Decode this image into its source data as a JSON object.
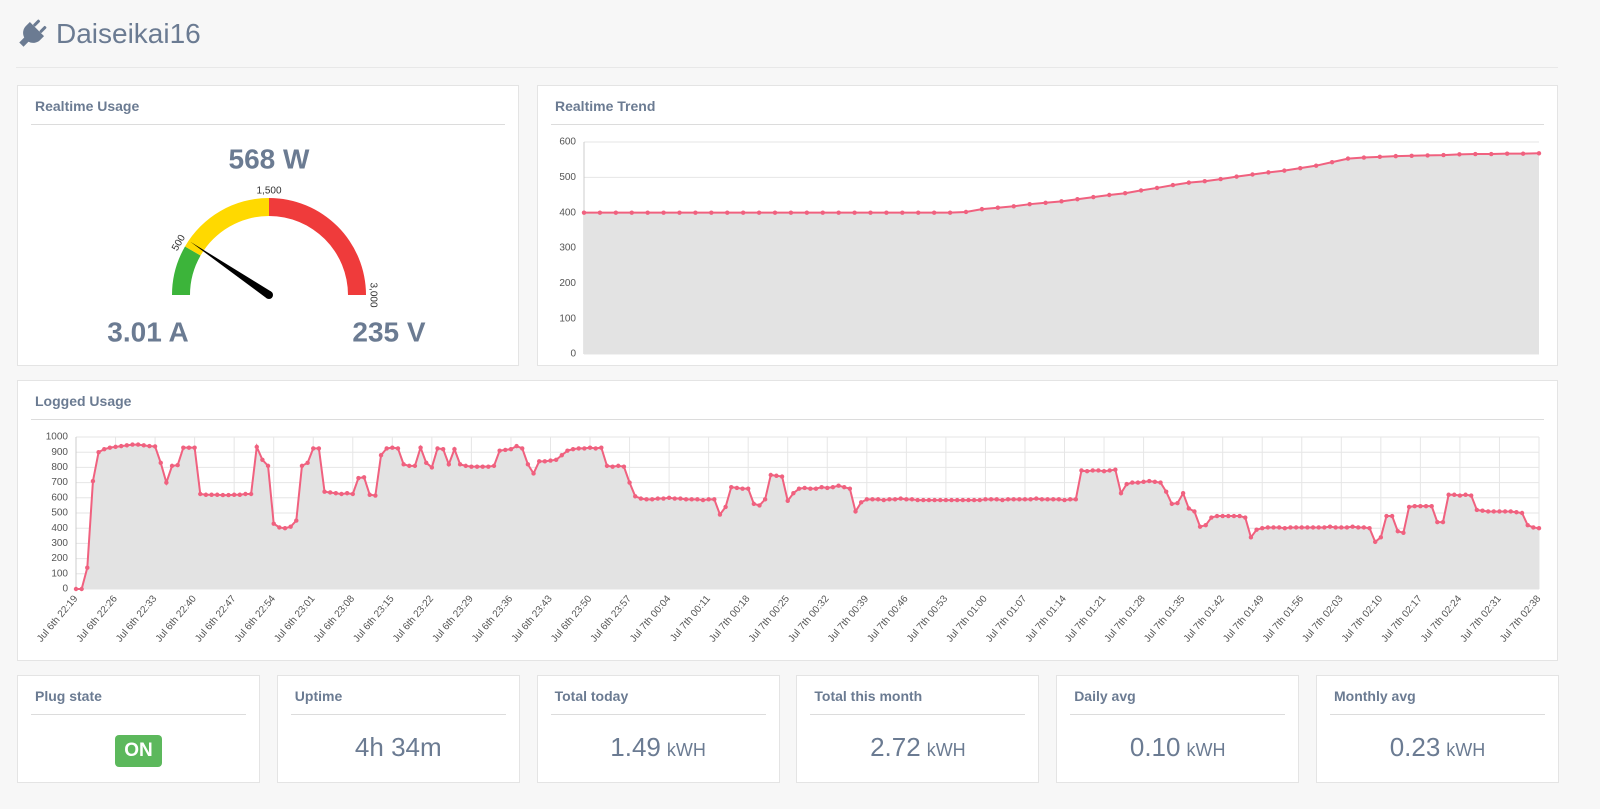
{
  "header": {
    "title": "Daiseikai16"
  },
  "chart_data": [
    {
      "type": "gauge",
      "title": "Realtime Usage",
      "value": 568,
      "value_label": "568 W",
      "current": "3.01 A",
      "voltage": "235 V",
      "range": [
        0,
        3000
      ],
      "ticks": [
        500,
        {
          "value": 1500,
          "label": "1,500"
        },
        {
          "value": 3000,
          "label": "3,000"
        }
      ],
      "bands": [
        {
          "from": 0,
          "to": 500,
          "color": "#3cb43a"
        },
        {
          "from": 500,
          "to": 1500,
          "color": "#ffd900"
        },
        {
          "from": 1500,
          "to": 3000,
          "color": "#ef3b3b"
        }
      ],
      "needle_color": "#000000"
    },
    {
      "type": "line",
      "title": "Realtime Trend",
      "color": "#f0617f",
      "area_color": "#e3e3e3",
      "grid": true,
      "xgrid": false,
      "ylim": [
        0,
        600
      ],
      "yticks": [
        0,
        100,
        200,
        300,
        400,
        500,
        600
      ],
      "values": [
        400,
        400,
        400,
        400,
        400,
        400,
        400,
        400,
        400,
        400,
        400,
        400,
        400,
        400,
        400,
        400,
        400,
        400,
        400,
        400,
        400,
        400,
        400,
        400,
        402,
        410,
        414,
        418,
        424,
        428,
        432,
        438,
        444,
        450,
        455,
        463,
        470,
        478,
        485,
        489,
        495,
        502,
        508,
        514,
        519,
        526,
        533,
        543,
        553,
        556,
        558,
        560,
        561,
        562,
        563,
        565,
        566,
        566,
        567,
        567,
        568
      ]
    },
    {
      "type": "line",
      "title": "Logged Usage",
      "color": "#f0617f",
      "area_color": "#e3e3e3",
      "grid": true,
      "xgrid": true,
      "ylim": [
        0,
        1000
      ],
      "yticks": [
        0,
        100,
        200,
        300,
        400,
        500,
        600,
        700,
        800,
        900,
        1000
      ],
      "categories": [
        "Jul 6th 22:19",
        null,
        null,
        null,
        null,
        null,
        null,
        "Jul 6th 22:26",
        null,
        null,
        null,
        null,
        null,
        null,
        "Jul 6th 22:33",
        null,
        null,
        null,
        null,
        null,
        null,
        "Jul 6th 22:40",
        null,
        null,
        null,
        null,
        null,
        null,
        "Jul 6th 22:47",
        null,
        null,
        null,
        null,
        null,
        null,
        "Jul 6th 22:54",
        null,
        null,
        null,
        null,
        null,
        null,
        "Jul 6th 23:01",
        null,
        null,
        null,
        null,
        null,
        null,
        "Jul 6th 23:08",
        null,
        null,
        null,
        null,
        null,
        null,
        "Jul 6th 23:15",
        null,
        null,
        null,
        null,
        null,
        null,
        "Jul 6th 23:22",
        null,
        null,
        null,
        null,
        null,
        null,
        "Jul 6th 23:29",
        null,
        null,
        null,
        null,
        null,
        null,
        "Jul 6th 23:36",
        null,
        null,
        null,
        null,
        null,
        null,
        "Jul 6th 23:43",
        null,
        null,
        null,
        null,
        null,
        null,
        "Jul 6th 23:50",
        null,
        null,
        null,
        null,
        null,
        null,
        "Jul 6th 23:57",
        null,
        null,
        null,
        null,
        null,
        null,
        "Jul 7th 00:04",
        null,
        null,
        null,
        null,
        null,
        null,
        "Jul 7th 00:11",
        null,
        null,
        null,
        null,
        null,
        null,
        "Jul 7th 00:18",
        null,
        null,
        null,
        null,
        null,
        null,
        "Jul 7th 00:25",
        null,
        null,
        null,
        null,
        null,
        null,
        "Jul 7th 00:32",
        null,
        null,
        null,
        null,
        null,
        null,
        "Jul 7th 00:39",
        null,
        null,
        null,
        null,
        null,
        null,
        "Jul 7th 00:46",
        null,
        null,
        null,
        null,
        null,
        null,
        "Jul 7th 00:53",
        null,
        null,
        null,
        null,
        null,
        null,
        "Jul 7th 01:00",
        null,
        null,
        null,
        null,
        null,
        null,
        "Jul 7th 01:07",
        null,
        null,
        null,
        null,
        null,
        null,
        "Jul 7th 01:14",
        null,
        null,
        null,
        null,
        null,
        null,
        "Jul 7th 01:21",
        null,
        null,
        null,
        null,
        null,
        null,
        "Jul 7th 01:28",
        null,
        null,
        null,
        null,
        null,
        null,
        "Jul 7th 01:35",
        null,
        null,
        null,
        null,
        null,
        null,
        "Jul 7th 01:42",
        null,
        null,
        null,
        null,
        null,
        null,
        "Jul 7th 01:49",
        null,
        null,
        null,
        null,
        null,
        null,
        "Jul 7th 01:56",
        null,
        null,
        null,
        null,
        null,
        null,
        "Jul 7th 02:03",
        null,
        null,
        null,
        null,
        null,
        null,
        "Jul 7th 02:10",
        null,
        null,
        null,
        null,
        null,
        null,
        "Jul 7th 02:17",
        null,
        null,
        null,
        null,
        null,
        null,
        "Jul 7th 02:24",
        null,
        null,
        null,
        null,
        null,
        null,
        "Jul 7th 02:31",
        null,
        null,
        null,
        null,
        null,
        null,
        "Jul 7th 02:38"
      ],
      "values": [
        0,
        0,
        140,
        710,
        900,
        920,
        930,
        935,
        940,
        945,
        950,
        950,
        945,
        940,
        938,
        830,
        700,
        810,
        815,
        930,
        930,
        930,
        625,
        620,
        620,
        620,
        618,
        618,
        620,
        620,
        625,
        625,
        935,
        850,
        810,
        430,
        405,
        400,
        410,
        450,
        810,
        830,
        925,
        925,
        640,
        635,
        630,
        625,
        630,
        625,
        730,
        735,
        620,
        615,
        880,
        925,
        930,
        925,
        820,
        810,
        810,
        930,
        830,
        800,
        925,
        920,
        820,
        920,
        820,
        810,
        805,
        805,
        805,
        805,
        810,
        910,
        915,
        920,
        940,
        925,
        820,
        760,
        840,
        840,
        845,
        850,
        880,
        910,
        920,
        925,
        925,
        930,
        925,
        930,
        810,
        805,
        810,
        805,
        700,
        610,
        595,
        590,
        590,
        595,
        595,
        600,
        595,
        595,
        590,
        590,
        590,
        585,
        590,
        590,
        490,
        540,
        670,
        665,
        660,
        660,
        560,
        550,
        590,
        750,
        745,
        740,
        580,
        630,
        660,
        665,
        660,
        660,
        670,
        665,
        670,
        680,
        670,
        660,
        510,
        570,
        590,
        590,
        590,
        585,
        590,
        590,
        595,
        590,
        590,
        585,
        585,
        585,
        585,
        585,
        585,
        585,
        585,
        585,
        585,
        585,
        585,
        590,
        590,
        590,
        585,
        590,
        590,
        590,
        590,
        590,
        595,
        590,
        590,
        590,
        590,
        585,
        590,
        590,
        780,
        775,
        780,
        780,
        775,
        780,
        785,
        630,
        690,
        700,
        700,
        705,
        710,
        705,
        700,
        640,
        560,
        565,
        630,
        530,
        510,
        410,
        420,
        470,
        480,
        480,
        480,
        480,
        480,
        470,
        340,
        390,
        400,
        405,
        405,
        405,
        400,
        405,
        405,
        405,
        405,
        405,
        405,
        405,
        410,
        405,
        405,
        405,
        410,
        405,
        405,
        400,
        310,
        340,
        480,
        480,
        380,
        370,
        540,
        545,
        545,
        545,
        545,
        440,
        440,
        620,
        620,
        615,
        620,
        615,
        520,
        515,
        510,
        510,
        510,
        510,
        510,
        505,
        500,
        420,
        405,
        400
      ]
    }
  ],
  "cards": [
    {
      "title": "Plug state",
      "value": "ON"
    },
    {
      "title": "Uptime",
      "value": "4h 34m"
    },
    {
      "title": "Total today",
      "value": "1.49",
      "unit": "kWH"
    },
    {
      "title": "Total this month",
      "value": "2.72",
      "unit": "kWH"
    },
    {
      "title": "Daily avg",
      "value": "0.10",
      "unit": "kWH"
    },
    {
      "title": "Monthly avg",
      "value": "0.23",
      "unit": "kWH"
    }
  ]
}
